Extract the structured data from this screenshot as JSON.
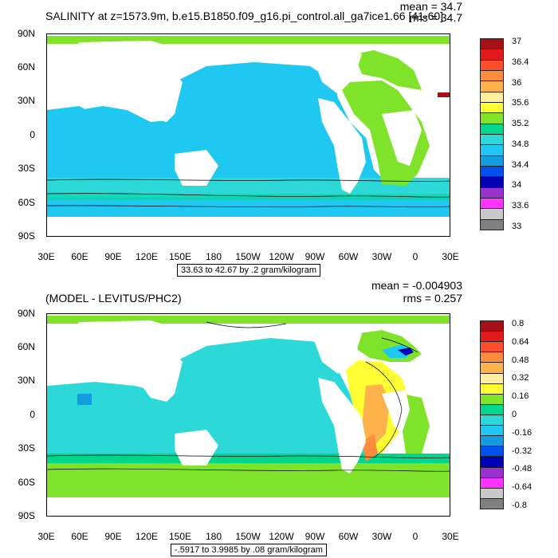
{
  "top": {
    "title": "SALINITY at z=1573.9m, b.e15.B1850.f09_g16.pi_control.all_ga7ice1.66 [41-60]",
    "mean": "mean = 34.7",
    "rms": "rms = 34.7",
    "range": "33.63 to 42.67 by .2 gram/kilogram",
    "colorbar": {
      "labels": [
        "37",
        "36.4",
        "36",
        "35.6",
        "35.2",
        "34.8",
        "34.4",
        "34",
        "33.6",
        "33"
      ],
      "colors": [
        "#a50f15",
        "#e31a1c",
        "#fc4e2a",
        "#fd8d3c",
        "#feb24c",
        "#ffeda0",
        "#ffff33",
        "#7fe32a",
        "#00d78c",
        "#2dd8d8",
        "#1ec8f0",
        "#139de0",
        "#0050f0",
        "#0000b4",
        "#9932cc",
        "#ff33ff",
        "#c8c8c8",
        "#808080"
      ]
    }
  },
  "bottom": {
    "title": "(MODEL - LEVITUS/PHC2)",
    "mean": "mean = -0.004903",
    "rms": "rms = 0.257",
    "range": "-.5917 to 3.9985 by .08 gram/kilogram",
    "colorbar": {
      "labels": [
        "0.8",
        "0.64",
        "0.48",
        "0.32",
        "0.16",
        "0",
        "-0.16",
        "-0.32",
        "-0.48",
        "-0.64",
        "-0.8"
      ],
      "colors": [
        "#a50f15",
        "#e31a1c",
        "#fc4e2a",
        "#fd8d3c",
        "#feb24c",
        "#ffeda0",
        "#ffff33",
        "#7fe32a",
        "#00d78c",
        "#2dd8d8",
        "#1ec8f0",
        "#139de0",
        "#0050f0",
        "#0000b4",
        "#9932cc",
        "#ff33ff",
        "#c8c8c8",
        "#808080"
      ]
    }
  },
  "axes": {
    "lat_labels": [
      "90N",
      "60N",
      "30N",
      "0",
      "30S",
      "60S",
      "90S"
    ],
    "lon_labels": [
      "30E",
      "60E",
      "90E",
      "120E",
      "150E",
      "180",
      "150W",
      "120W",
      "90W",
      "60W",
      "30W",
      "0",
      "30E"
    ]
  }
}
